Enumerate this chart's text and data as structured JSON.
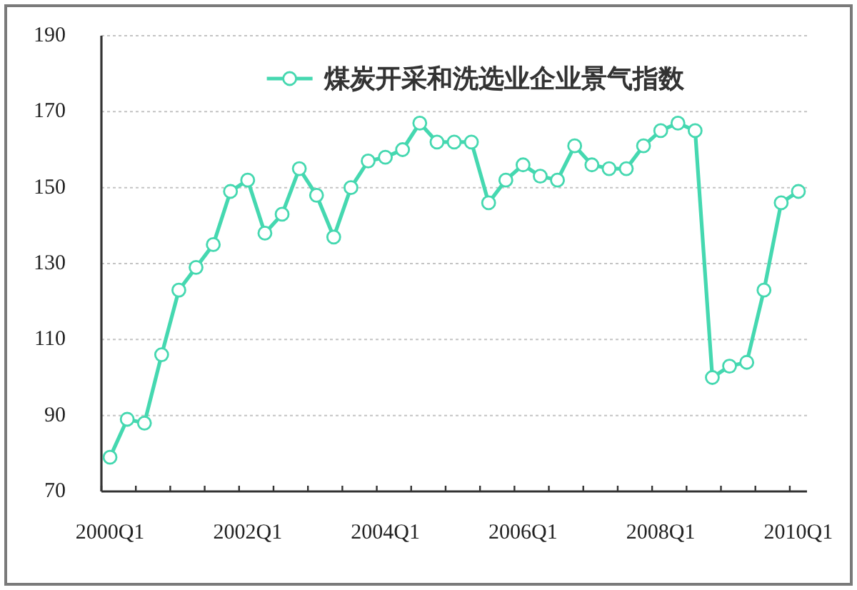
{
  "chart_data": {
    "type": "line",
    "categories": [
      "2000Q1",
      null,
      null,
      null,
      null,
      null,
      null,
      null,
      "2002Q1",
      null,
      null,
      null,
      null,
      null,
      null,
      null,
      "2004Q1",
      null,
      null,
      null,
      null,
      null,
      null,
      null,
      "2006Q1",
      null,
      null,
      null,
      null,
      null,
      null,
      null,
      "2008Q1",
      null,
      null,
      null,
      null,
      null,
      null,
      null,
      "2010Q1"
    ],
    "series": [
      {
        "name": "煤炭开采和洗选业企业景气指数",
        "color": "#45d8b0",
        "values": [
          79,
          89,
          88,
          106,
          123,
          129,
          135,
          149,
          152,
          138,
          143,
          155,
          148,
          137,
          150,
          157,
          158,
          160,
          167,
          162,
          162,
          162,
          146,
          152,
          156,
          153,
          152,
          161,
          156,
          155,
          155,
          161,
          165,
          167,
          165,
          100,
          103,
          104,
          123,
          146,
          149
        ]
      }
    ],
    "ylim": [
      70,
      190
    ],
    "yticks": [
      70,
      90,
      110,
      130,
      150,
      170,
      190
    ],
    "grid": "y",
    "legend": "top",
    "marker": "circle",
    "line_style": "solid"
  }
}
